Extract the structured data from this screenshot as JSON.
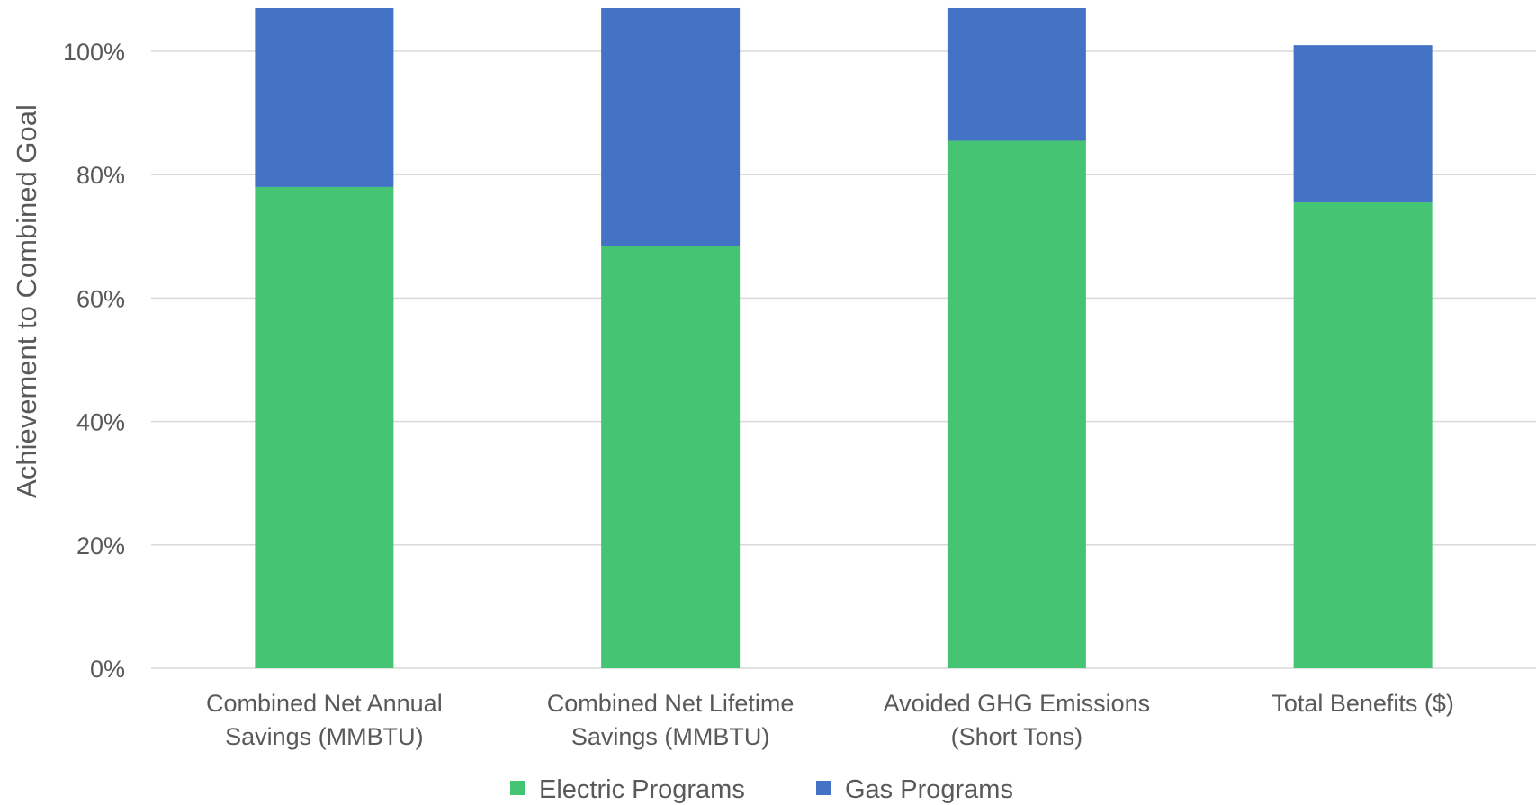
{
  "chart_data": {
    "type": "bar",
    "stacked": true,
    "ylabel": "Achievement to Combined Goal",
    "xlabel": "",
    "ylim": [
      0,
      1.0
    ],
    "y_ticks": [
      0,
      0.2,
      0.4,
      0.6,
      0.8,
      1.0
    ],
    "y_tick_labels": [
      "0%",
      "20%",
      "40%",
      "60%",
      "80%",
      "100%"
    ],
    "grid": true,
    "legend_position": "bottom",
    "categories": [
      [
        "Combined Net Annual",
        "Savings (MMBTU)"
      ],
      [
        "Combined Net Lifetime",
        "Savings (MMBTU)"
      ],
      [
        "Avoided GHG Emissions",
        "(Short Tons)"
      ],
      [
        "Total Benefits ($)"
      ]
    ],
    "series": [
      {
        "name": "Electric Programs",
        "color": "#45c573",
        "values": [
          0.78,
          0.685,
          0.855,
          0.755
        ]
      },
      {
        "name": "Gas Programs",
        "color": "#4472c4",
        "values": [
          0.29,
          0.385,
          0.215,
          0.255
        ]
      }
    ]
  }
}
